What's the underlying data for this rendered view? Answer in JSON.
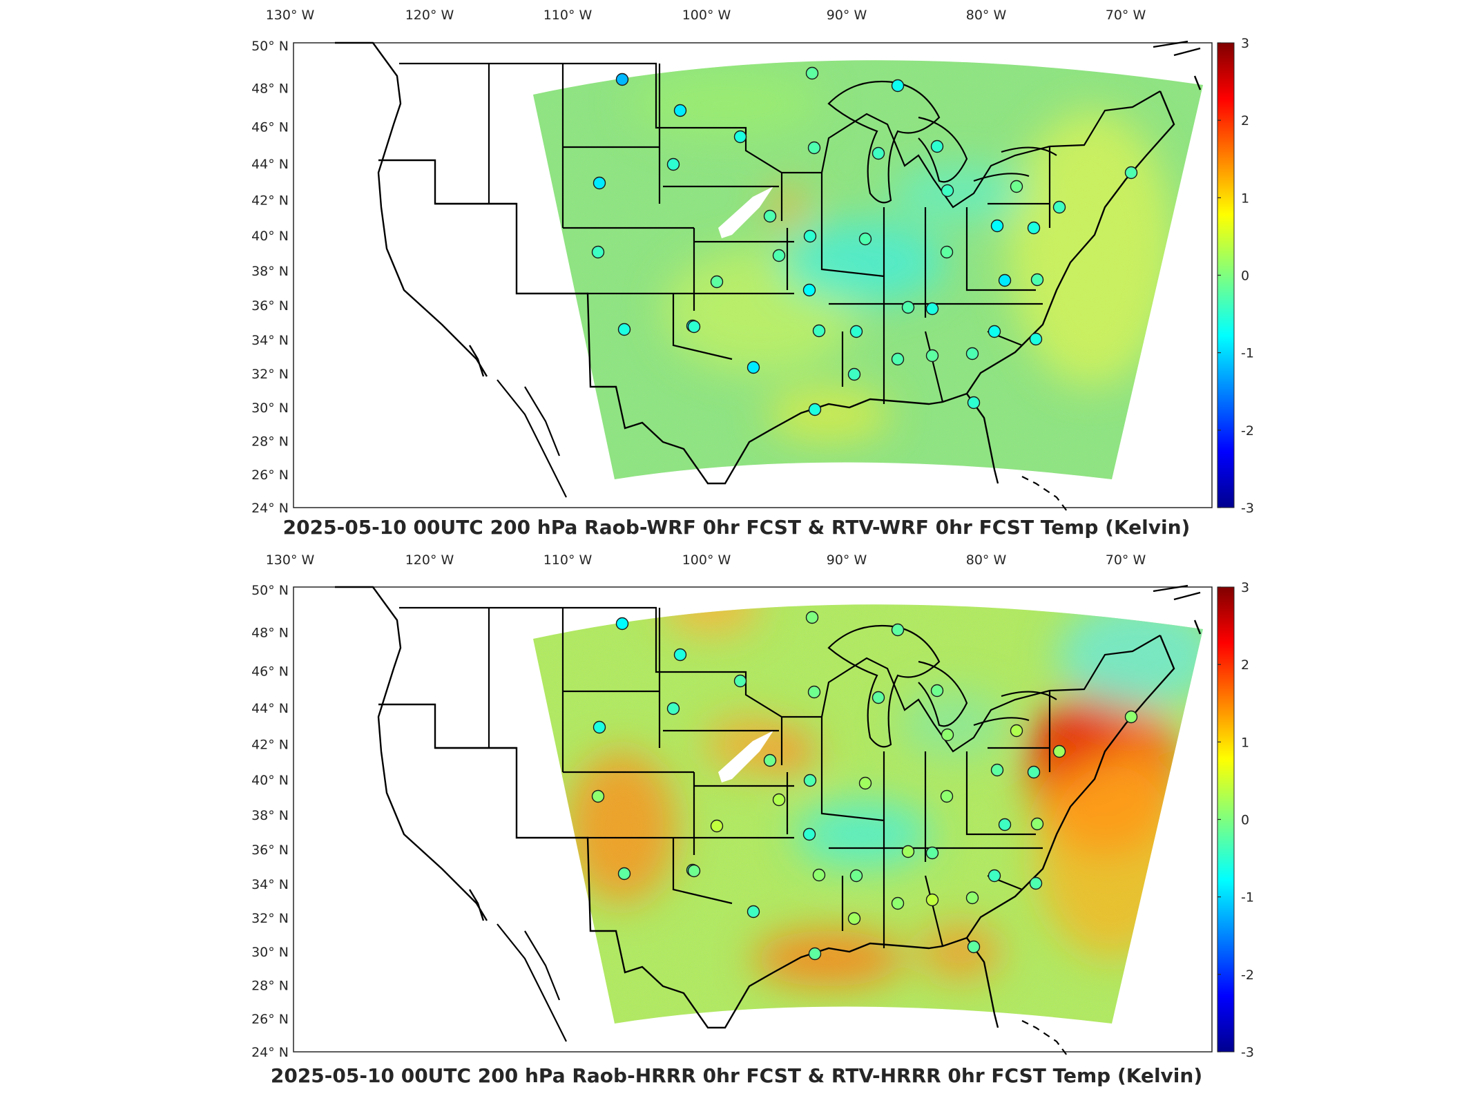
{
  "panels": [
    {
      "id": "wrf",
      "title": "2025-05-10 00UTC 200 hPa Raob-WRF 0hr FCST & RTV-WRF 0hr FCST Temp (Kelvin)"
    },
    {
      "id": "hrrr",
      "title": "2025-05-10 00UTC 200 hPa Raob-HRRR 0hr FCST & RTV-HRRR 0hr FCST Temp (Kelvin)"
    }
  ],
  "axes": {
    "lon_ticks": [
      "130",
      "120",
      "110",
      "100",
      "90",
      "80",
      "70"
    ],
    "lon_suffix": "W",
    "lat_ticks": [
      "50",
      "48",
      "46",
      "44",
      "42",
      "40",
      "38",
      "36",
      "34",
      "32",
      "30",
      "28",
      "26",
      "24"
    ],
    "lat_suffix": "N",
    "degree_symbol": "°"
  },
  "colorbar": {
    "ticks": [
      "3",
      "2",
      "1",
      "0",
      "-1",
      "-2",
      "-3"
    ],
    "min": -3,
    "max": 3,
    "colors": [
      "#00008f",
      "#0000ff",
      "#00ffff",
      "#7fff7f",
      "#ffff00",
      "#ff0000",
      "#800000"
    ]
  },
  "field_colors": {
    "wrf_base": "#8fe87a",
    "hrrr_base": "#b7ee55",
    "warm": "#ff8c1a",
    "hot": "#ff5000",
    "cool": "#3cf0e6",
    "land_outline": "#000000"
  },
  "stations": {
    "note_units": "values are Kelvin differences encoded by marker fill",
    "wrf_values": [
      -1.2,
      -0.9,
      -0.6,
      -0.3,
      -0.5,
      -0.9,
      -0.4,
      -0.5,
      -0.4,
      -0.7,
      -0.2,
      -0.3,
      -0.5,
      -0.3,
      -0.2,
      -0.8,
      -0.1,
      -0.6,
      -0.3,
      -0.9,
      -0.6,
      -0.3,
      -0.5,
      -0.4,
      -0.8,
      -0.3,
      -0.2,
      -0.7,
      -0.4,
      -0.6,
      -0.5,
      -0.9,
      -0.6,
      -0.4,
      -0.3,
      -0.2,
      -0.5,
      -0.3,
      -0.6,
      -0.7,
      -0.4,
      -0.3
    ],
    "hrrr_values": [
      -0.8,
      -0.6,
      -0.3,
      -0.1,
      -0.4,
      -0.6,
      -0.2,
      -0.1,
      0.1,
      -0.2,
      0.0,
      -0.1,
      -0.3,
      0.2,
      0.1,
      -0.2,
      0.3,
      -0.3,
      0.1,
      -0.4,
      -0.2,
      0.2,
      -0.1,
      0.1,
      -0.5,
      0.3,
      0.4,
      -0.3,
      0.1,
      -0.2,
      -0.1,
      -0.4,
      -0.2,
      0.2,
      0.1,
      0.4,
      -0.2,
      0.1,
      -0.3,
      -0.4,
      0.2,
      0.1
    ]
  }
}
